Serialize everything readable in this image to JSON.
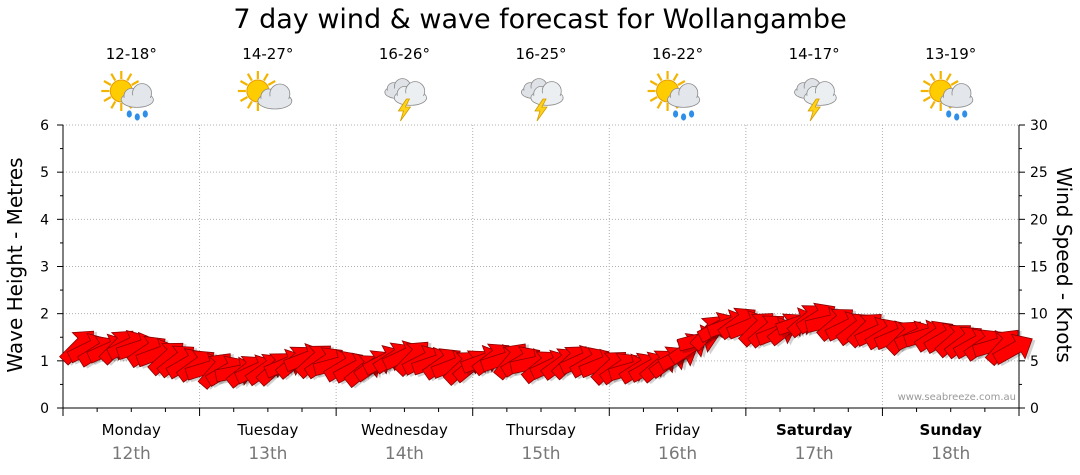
{
  "chart_data": {
    "type": "line",
    "title": "7 day wind & wave forecast for Wollangambe",
    "left_axis": {
      "label": "Wave Height - Metres",
      "ylim": [
        0,
        6
      ],
      "ticks": [
        0,
        1,
        2,
        3,
        4,
        5,
        6
      ]
    },
    "right_axis": {
      "label": "Wind Speed - Knots",
      "ylim": [
        0,
        30
      ],
      "ticks": [
        0,
        5,
        10,
        15,
        20,
        25,
        30
      ]
    },
    "grid": true,
    "days": [
      {
        "name": "Monday",
        "date": "12th",
        "temp": "12-18°",
        "icon": "sun-cloud-rain-icon",
        "bold": false
      },
      {
        "name": "Tuesday",
        "date": "13th",
        "temp": "14-27°",
        "icon": "sun-cloud-icon",
        "bold": false
      },
      {
        "name": "Wednesday",
        "date": "14th",
        "temp": "16-26°",
        "icon": "storm-icon",
        "bold": false
      },
      {
        "name": "Thursday",
        "date": "15th",
        "temp": "16-25°",
        "icon": "storm-icon",
        "bold": false
      },
      {
        "name": "Friday",
        "date": "16th",
        "temp": "16-22°",
        "icon": "sun-cloud-rain-icon",
        "bold": false
      },
      {
        "name": "Saturday",
        "date": "17th",
        "temp": "14-17°",
        "icon": "storm-icon",
        "bold": true
      },
      {
        "name": "Sunday",
        "date": "18th",
        "temp": "13-19°",
        "icon": "sun-cloud-rain-icon",
        "bold": true
      }
    ],
    "series": [
      {
        "type": "wind-arrows",
        "units": "knots",
        "color": "#ff0000",
        "values": [
          6.5,
          6.3,
          6.0,
          6.2,
          6.5,
          6.6,
          6.4,
          6.0,
          5.7,
          5.3,
          5.0,
          4.7,
          4.5,
          4.2,
          4.0,
          3.9,
          3.8,
          3.9,
          4.0,
          4.1,
          4.2,
          4.6,
          4.9,
          5.2,
          5.0,
          4.8,
          4.6,
          4.4,
          4.2,
          4.0,
          4.5,
          5.0,
          5.3,
          5.5,
          5.3,
          5.0,
          4.8,
          4.7,
          4.5,
          4.3,
          4.5,
          5.0,
          5.2,
          5.1,
          5.0,
          4.9,
          4.7,
          4.4,
          4.5,
          4.7,
          4.9,
          5.0,
          4.8,
          4.6,
          4.3,
          4.2,
          4.1,
          4.2,
          4.3,
          4.5,
          4.9,
          5.5,
          6.3,
          7.2,
          8.0,
          8.5,
          8.8,
          9.0,
          8.7,
          8.4,
          8.2,
          8.0,
          8.4,
          9.0,
          9.3,
          9.5,
          9.1,
          8.9,
          8.6,
          8.4,
          8.3,
          8.0,
          7.8,
          7.6,
          7.5,
          7.6,
          7.7,
          7.6,
          7.4,
          7.2,
          7.0,
          6.8,
          6.7,
          6.6,
          6.5,
          6.2
        ]
      }
    ]
  },
  "watermark": "www.seabreeze.com.au"
}
